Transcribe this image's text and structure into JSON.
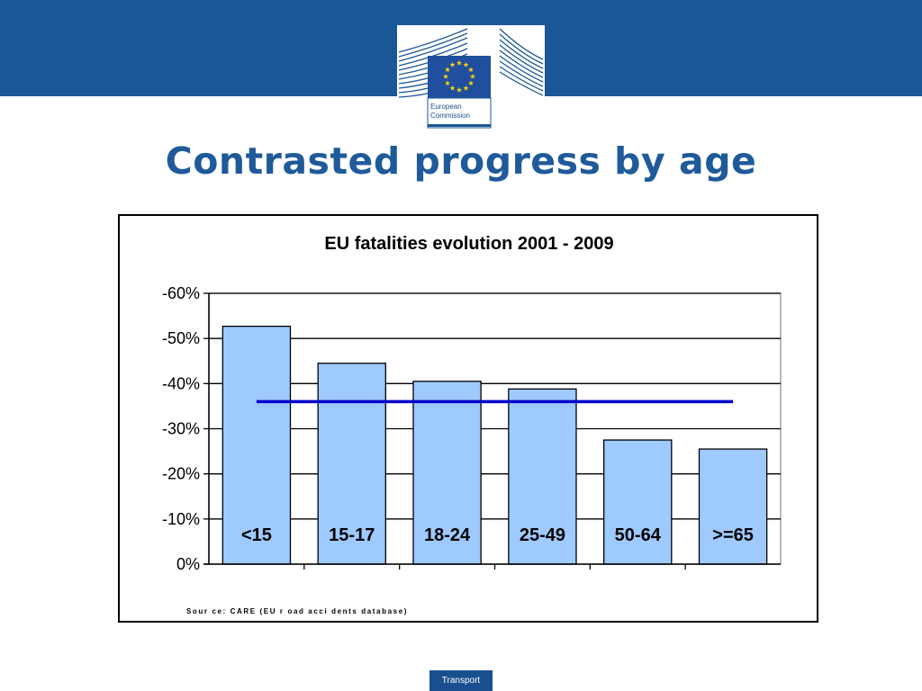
{
  "header": {
    "logo_line1": "European",
    "logo_line2": "Commission",
    "colors": {
      "band": "#1a5796",
      "flag": "#1f4f9e",
      "stars": "#ffd700"
    }
  },
  "title": "Contrasted progress by age",
  "chart_data": {
    "type": "bar",
    "title": "EU fatalities  evolution 2001 - 2009",
    "categories": [
      "<15",
      "15-17",
      "18-24",
      "25-49",
      "50-64",
      ">=65"
    ],
    "values": [
      -52.7,
      -44.5,
      -40.5,
      -38.8,
      -27.5,
      -25.5
    ],
    "overlay_line": {
      "type": "line",
      "value": -36,
      "color": "#0000cc"
    },
    "ylim": [
      0,
      -60
    ],
    "yticks": [
      0,
      -10,
      -20,
      -30,
      -40,
      -50,
      -60
    ],
    "ytick_labels": [
      "0%",
      "-10%",
      "-20%",
      "-30%",
      "-40%",
      "-50%",
      "-60%"
    ],
    "axis_direction": "reversed",
    "grid": true,
    "legend": "none",
    "bar_color": "#9fcaff",
    "xlabel": "",
    "ylabel": ""
  },
  "source": "Sour ce: CARE (EU r oad acci dents database)",
  "footer": {
    "label": "Transport"
  }
}
